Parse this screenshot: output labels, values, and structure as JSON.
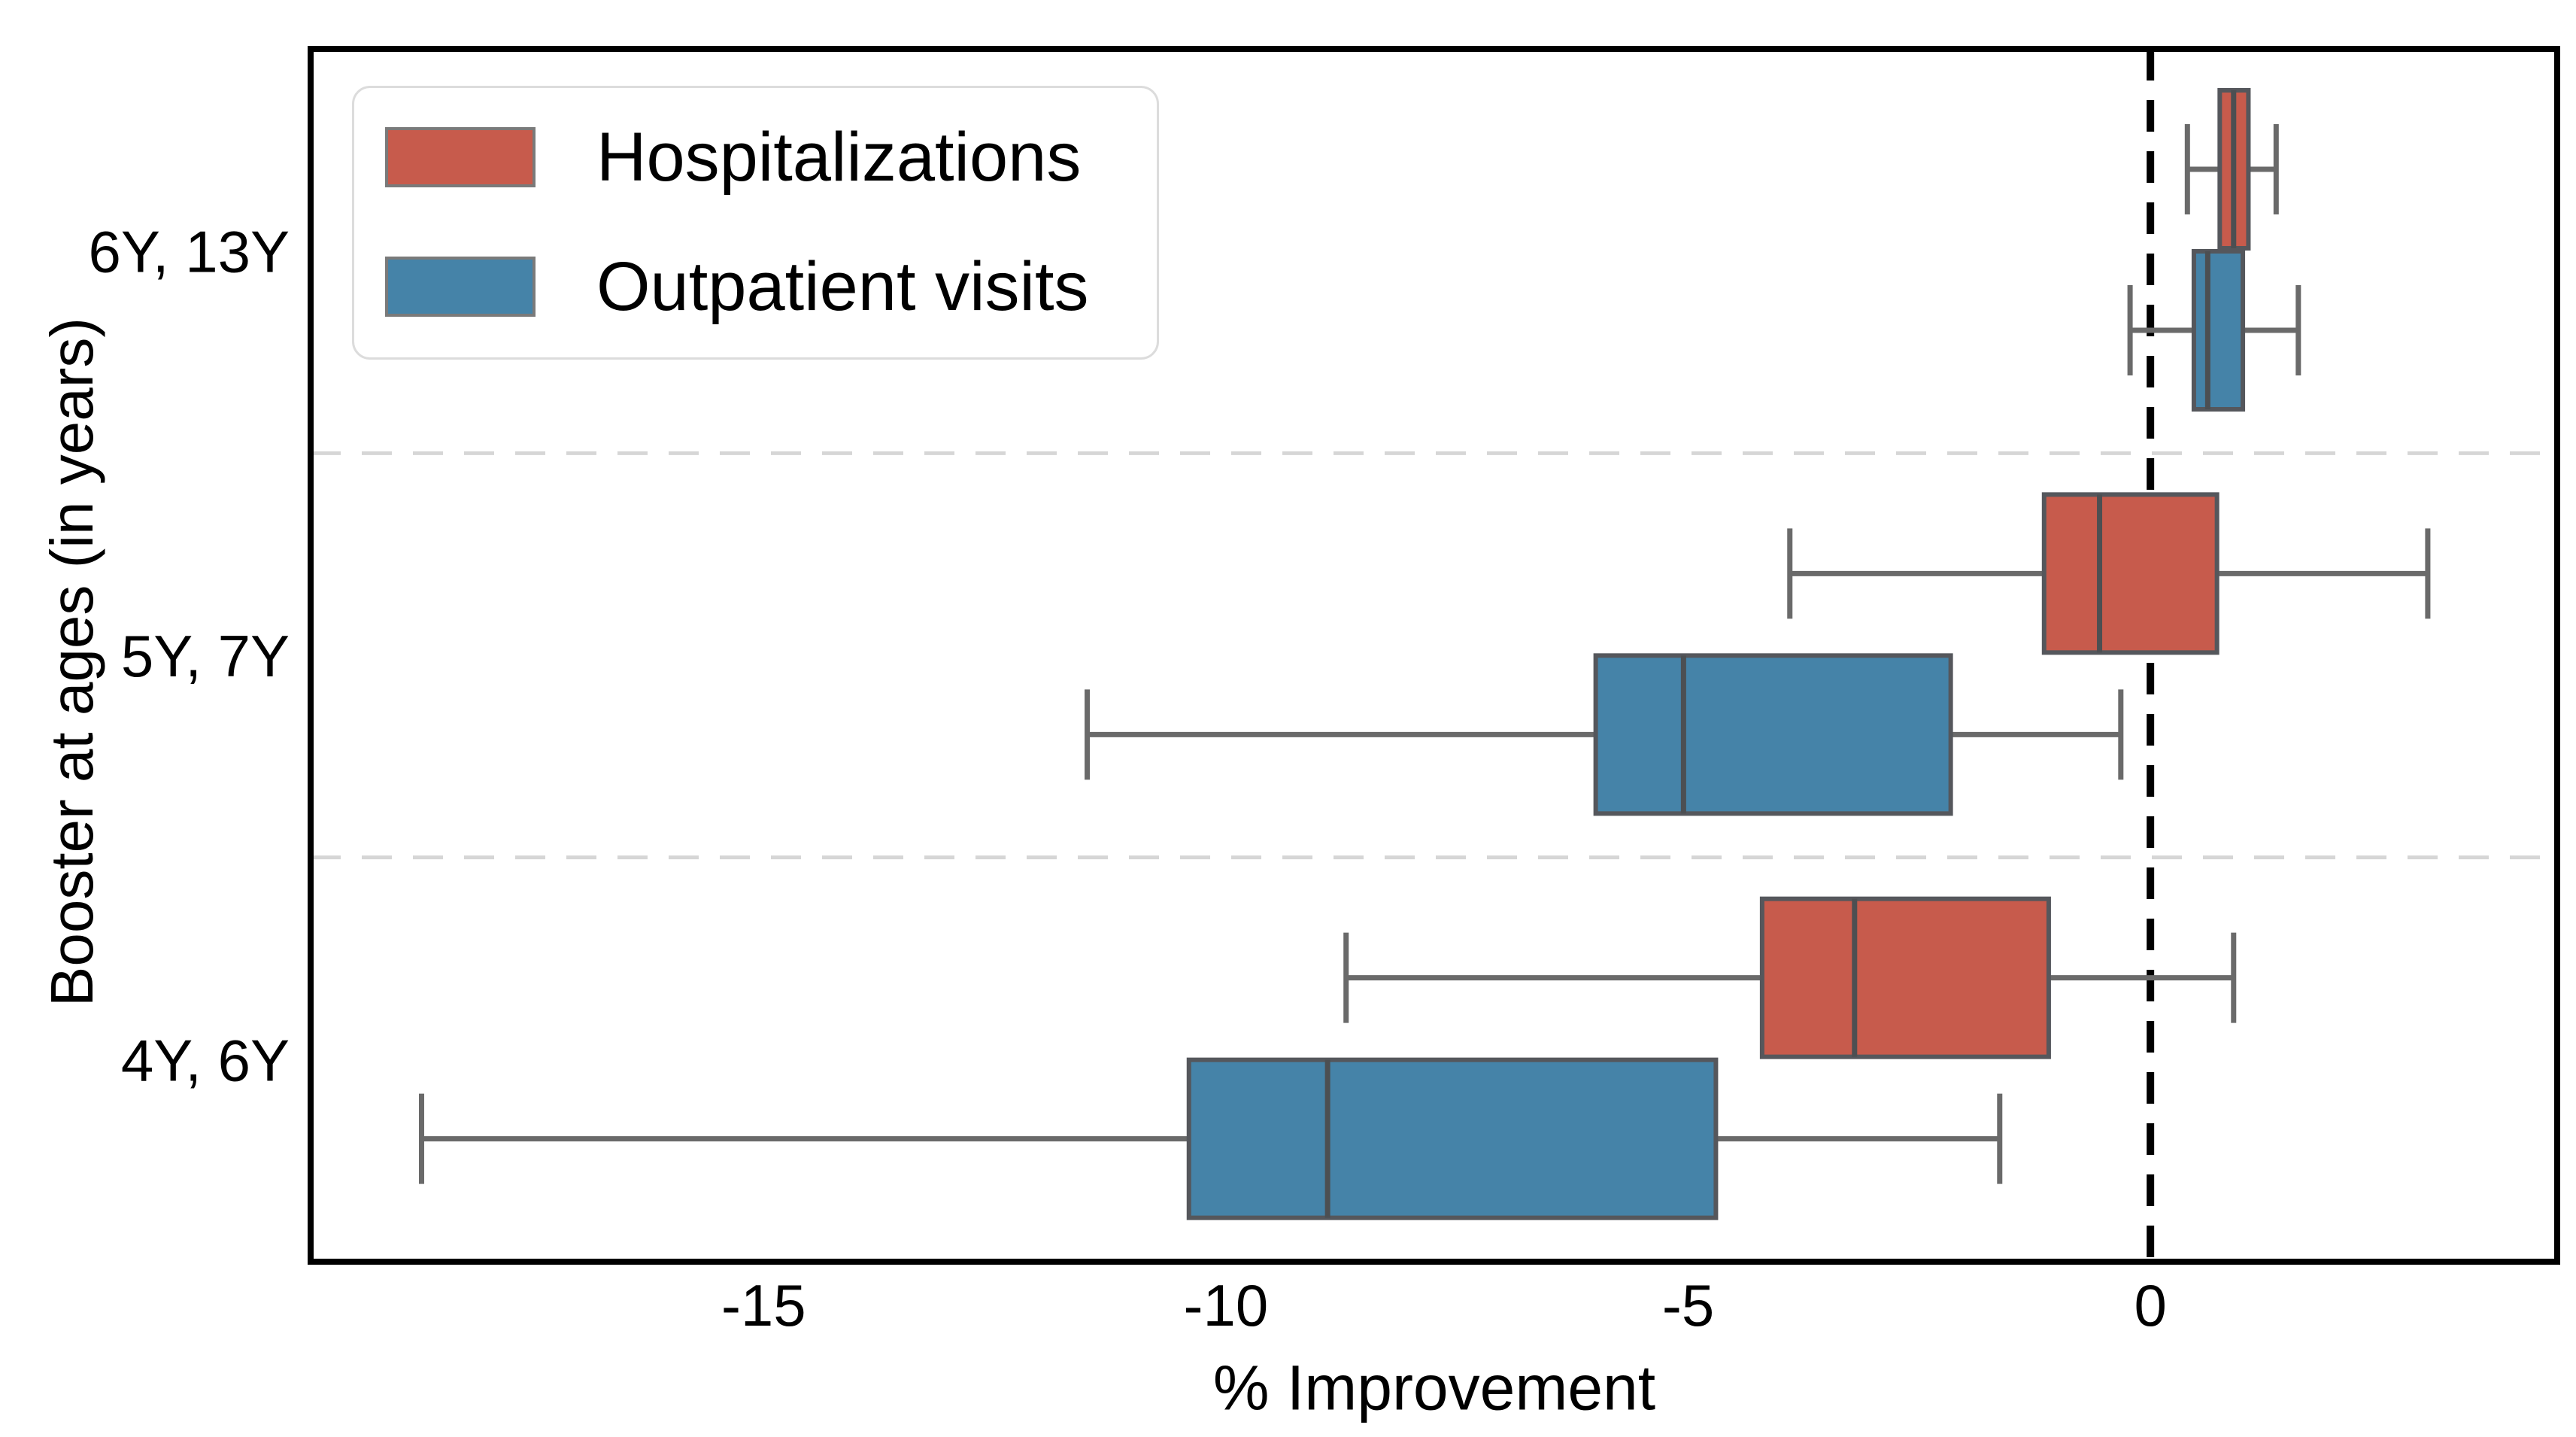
{
  "figure": {
    "background": "#ffffff",
    "border_color": "#000000",
    "zero_line_color": "#000000",
    "separator_color": "#d6d6d6",
    "whisker_color": "#6a6a6a",
    "box_edge_color": "#55575c",
    "median_color": "#4c4f52",
    "legend_border_color": "#dcdcdc"
  },
  "chart_data": {
    "type": "boxplot-horizontal-grouped",
    "title": "",
    "xlabel": "% Improvement",
    "ylabel": "Booster at ages (in years)",
    "categories": [
      "6Y, 13Y",
      "5Y, 7Y",
      "4Y, 6Y"
    ],
    "xticks": [
      {
        "value": -15,
        "label": "-15"
      },
      {
        "value": -10,
        "label": "-10"
      },
      {
        "value": -5,
        "label": "-5"
      },
      {
        "value": 0,
        "label": "0"
      }
    ],
    "xlim": [
      -19.9,
      4.4
    ],
    "zero_reference_line": 0,
    "grid": "off",
    "legend_position": "upper-left",
    "band_separators": "dashed-light-gray",
    "series": [
      {
        "name": "Hospitalizations",
        "color": "#c75b4c",
        "boxes": [
          {
            "category": "6Y, 13Y",
            "whisker_low": 0.4,
            "q1": 0.75,
            "median": 0.9,
            "q3": 1.06,
            "whisker_high": 1.36
          },
          {
            "category": "5Y, 7Y",
            "whisker_low": -3.9,
            "q1": -1.15,
            "median": -0.55,
            "q3": 0.72,
            "whisker_high": 3.0
          },
          {
            "category": "4Y, 6Y",
            "whisker_low": -8.7,
            "q1": -4.2,
            "median": -3.2,
            "q3": -1.1,
            "whisker_high": 0.9
          }
        ]
      },
      {
        "name": "Outpatient visits",
        "color": "#4583a8",
        "boxes": [
          {
            "category": "6Y, 13Y",
            "whisker_low": -0.22,
            "q1": 0.47,
            "median": 0.62,
            "q3": 1.0,
            "whisker_high": 1.6
          },
          {
            "category": "5Y, 7Y",
            "whisker_low": -11.5,
            "q1": -6.0,
            "median": -5.05,
            "q3": -2.16,
            "whisker_high": -0.32
          },
          {
            "category": "4Y, 6Y",
            "whisker_low": -18.7,
            "q1": -10.4,
            "median": -8.9,
            "q3": -4.7,
            "whisker_high": -1.63
          }
        ]
      }
    ]
  }
}
